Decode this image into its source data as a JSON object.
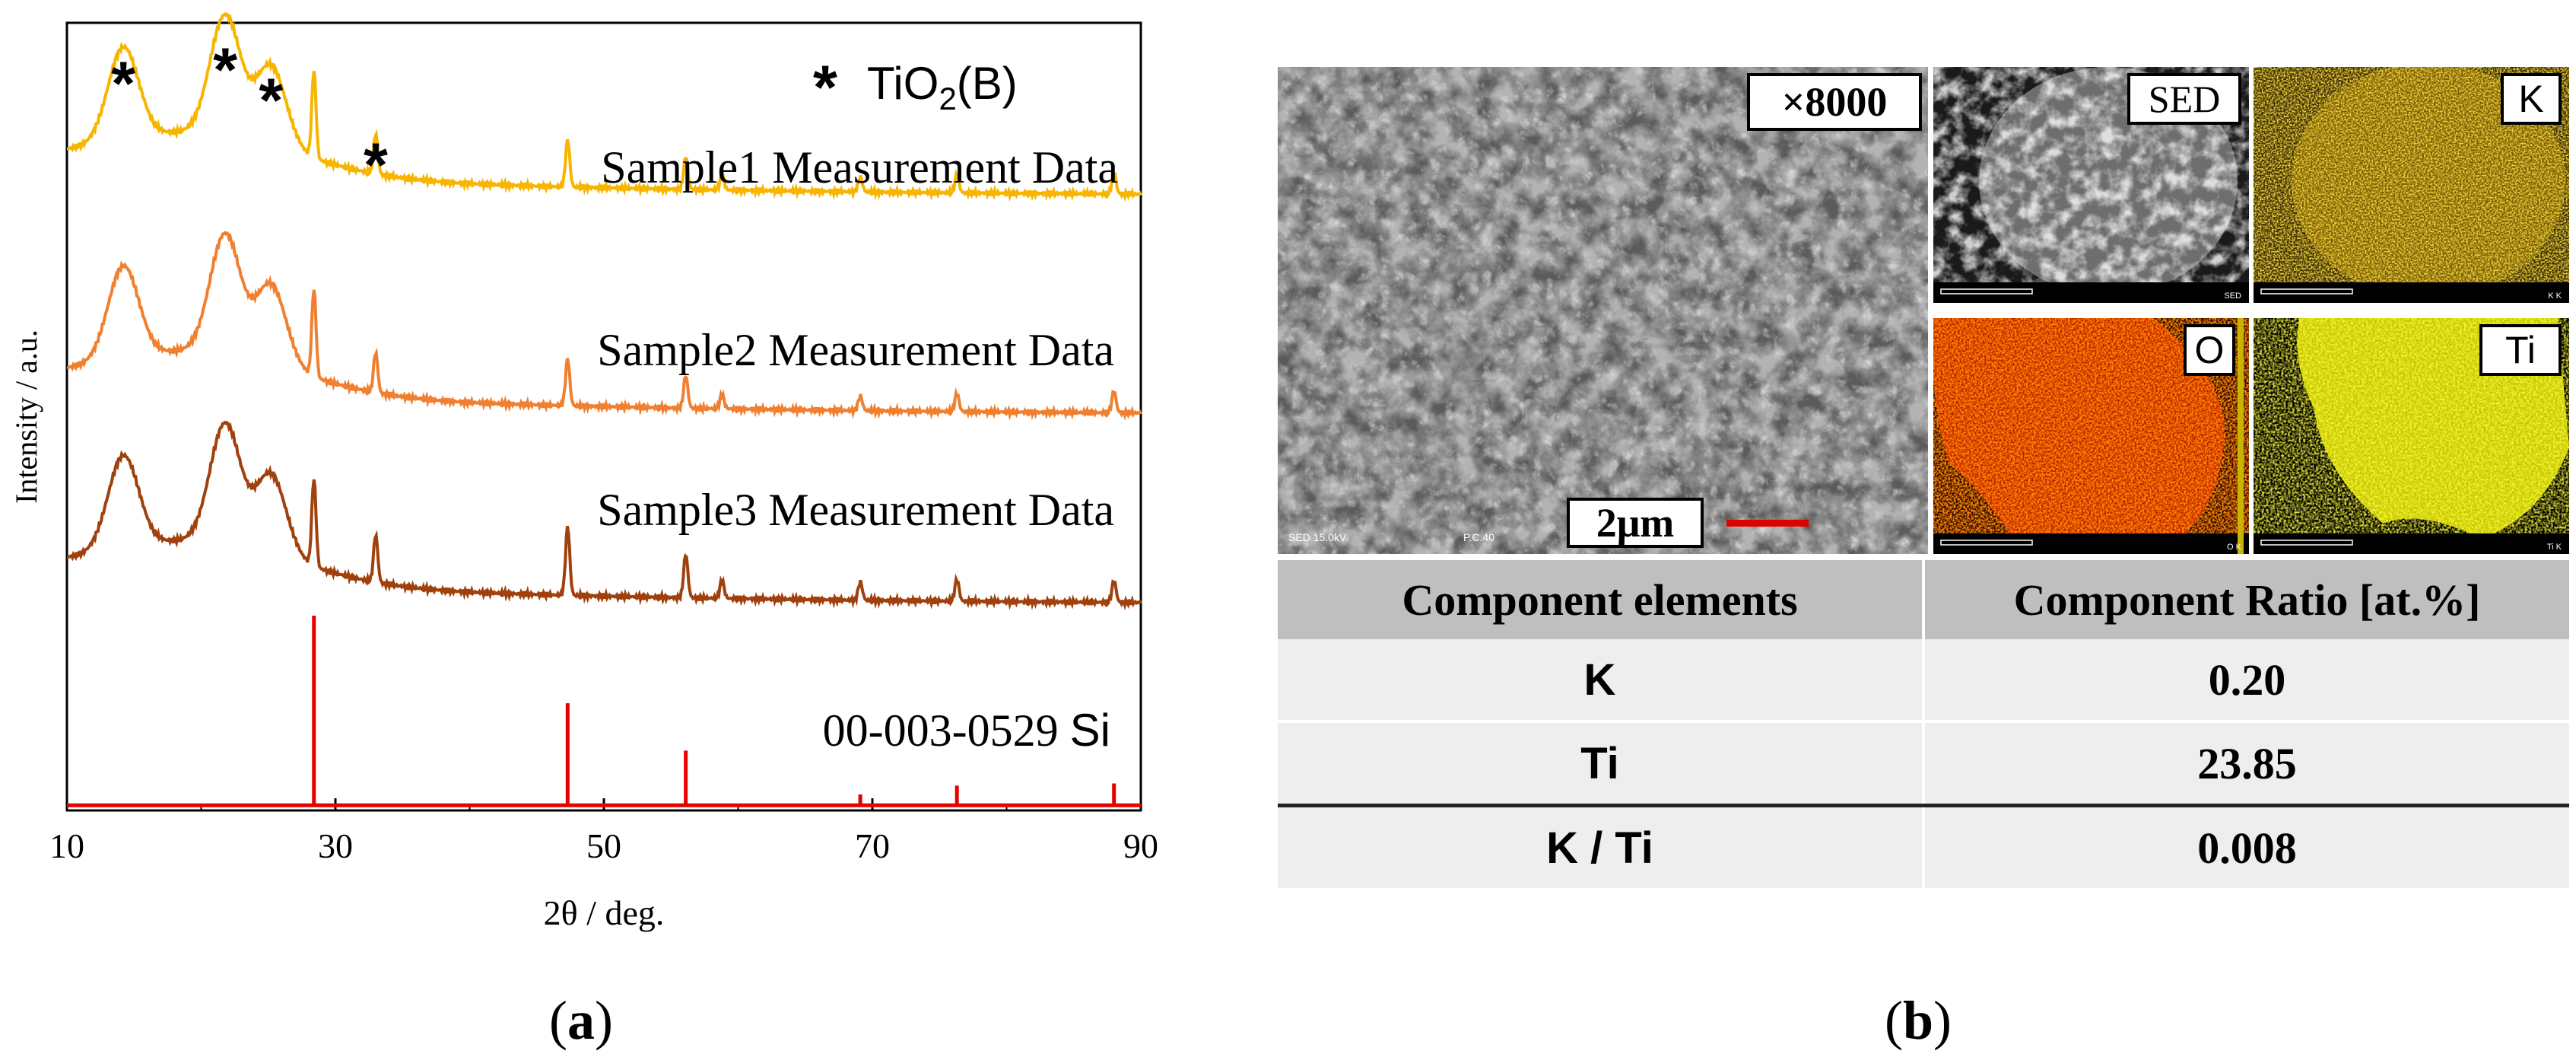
{
  "panels": {
    "a_label_letter": "a",
    "b_label_letter": "b",
    "paren_open": "(",
    "paren_close": ")"
  },
  "chart_data": {
    "type": "line",
    "xlabel": "2θ / deg.",
    "ylabel": "Intensity / a.u.",
    "xlim": [
      10,
      90
    ],
    "xticks": [
      "10",
      "30",
      "50",
      "70",
      "90"
    ],
    "grid": false,
    "legend_marker": "*",
    "legend_text": "TiO",
    "legend_sub": "2",
    "legend_suffix": "(B)",
    "tio2b_peak_positions": [
      14.2,
      21.8,
      25.2,
      33.0
    ],
    "series": [
      {
        "name": "Sample1 Measurement Data",
        "color": "#f7b500",
        "offset": 8.2,
        "peaks": [
          [
            14.2,
            2.3
          ],
          [
            21.8,
            3.0
          ],
          [
            25.2,
            2.0
          ],
          [
            28.4,
            1.2
          ],
          [
            33.0,
            0.55
          ],
          [
            47.3,
            0.65
          ],
          [
            56.1,
            0.45
          ],
          [
            58.8,
            0.2
          ],
          [
            69.1,
            0.2
          ],
          [
            76.3,
            0.25
          ],
          [
            88.0,
            0.3
          ]
        ]
      },
      {
        "name": "Sample2 Measurement Data",
        "color": "#f08030",
        "offset": 5.2,
        "peaks": [
          [
            14.2,
            2.3
          ],
          [
            21.8,
            3.0
          ],
          [
            25.2,
            2.0
          ],
          [
            28.4,
            1.2
          ],
          [
            33.0,
            0.55
          ],
          [
            47.3,
            0.65
          ],
          [
            56.1,
            0.45
          ],
          [
            58.8,
            0.2
          ],
          [
            69.1,
            0.2
          ],
          [
            76.3,
            0.25
          ],
          [
            88.0,
            0.3
          ]
        ]
      },
      {
        "name": "Sample3 Measurement Data",
        "color": "#a0400c",
        "offset": 2.6,
        "peaks": [
          [
            14.2,
            2.3
          ],
          [
            21.8,
            3.0
          ],
          [
            25.2,
            2.0
          ],
          [
            28.4,
            1.2
          ],
          [
            33.0,
            0.65
          ],
          [
            47.3,
            0.95
          ],
          [
            56.1,
            0.6
          ],
          [
            58.8,
            0.25
          ],
          [
            69.1,
            0.25
          ],
          [
            76.3,
            0.3
          ],
          [
            88.0,
            0.3
          ]
        ]
      }
    ],
    "reference": {
      "name_code": "00-003-0529",
      "name_phase": "Si",
      "color": "#e60000",
      "lines": [
        [
          28.4,
          2.6
        ],
        [
          47.3,
          1.4
        ],
        [
          56.1,
          0.75
        ],
        [
          69.1,
          0.15
        ],
        [
          76.3,
          0.27
        ],
        [
          88.0,
          0.3
        ]
      ]
    },
    "ylim": [
      0,
      10.8
    ]
  },
  "sem": {
    "magnification": "×8000",
    "scalebar": "2μm",
    "footer_left": "SED  15.0kV",
    "footer_mid": "P.C.40",
    "maps": [
      "SED",
      "K",
      "O",
      "Ti"
    ],
    "map_scale": "10 μm",
    "map_footers": [
      "SED",
      "K K",
      "O K",
      "Ti K"
    ]
  },
  "table": {
    "headers": [
      "Component elements",
      "Component Ratio [at.%]"
    ],
    "rows": [
      {
        "element": "K",
        "value": "0.20"
      },
      {
        "element": "Ti",
        "value": "23.85"
      },
      {
        "element": "K / Ti",
        "value": "0.008"
      }
    ]
  }
}
